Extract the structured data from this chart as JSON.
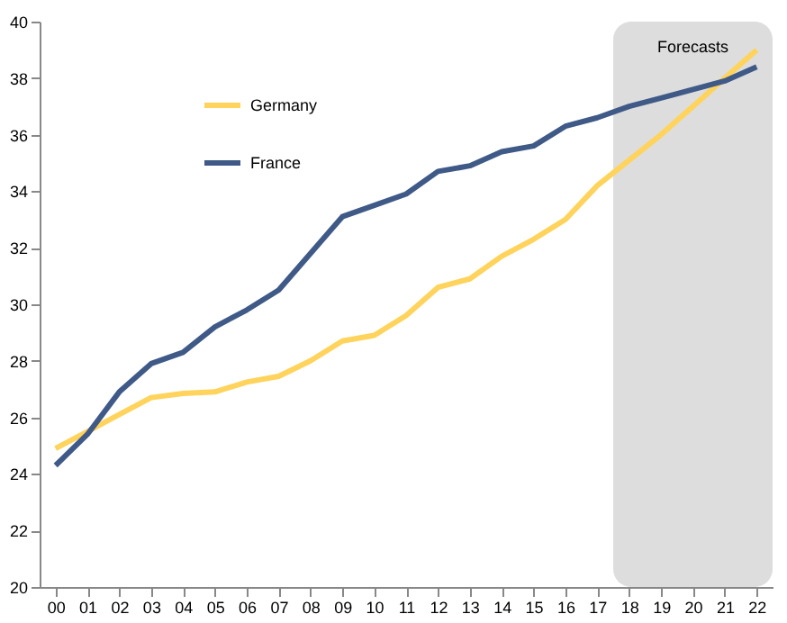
{
  "chart_data": {
    "type": "line",
    "categories": [
      "00",
      "01",
      "02",
      "03",
      "04",
      "05",
      "06",
      "07",
      "08",
      "09",
      "10",
      "11",
      "12",
      "13",
      "14",
      "15",
      "16",
      "17",
      "18",
      "19",
      "20",
      "21",
      "22"
    ],
    "series": [
      {
        "name": "Germany",
        "color": "#ffd35c",
        "values": [
          24.9,
          25.5,
          26.1,
          26.7,
          26.85,
          26.9,
          27.25,
          27.45,
          28.0,
          28.7,
          28.9,
          29.6,
          30.6,
          30.9,
          31.7,
          32.3,
          33.0,
          34.2,
          35.1,
          36.0,
          37.0,
          38.0,
          39.0
        ]
      },
      {
        "name": "France",
        "color": "#3f5a87",
        "values": [
          24.3,
          25.4,
          26.9,
          27.9,
          28.3,
          29.2,
          29.8,
          30.5,
          31.8,
          33.1,
          33.5,
          33.9,
          34.7,
          34.9,
          35.4,
          35.6,
          36.3,
          36.6,
          37.0,
          37.3,
          37.6,
          37.9,
          38.4
        ]
      }
    ],
    "ylim": [
      20,
      40
    ],
    "yticks": [
      20,
      22,
      24,
      26,
      28,
      30,
      32,
      34,
      36,
      38,
      40
    ],
    "bands": [
      {
        "axis": "x",
        "from": "18",
        "to": "22",
        "label": "Forecasts",
        "color": "#dddddd"
      }
    ],
    "grid": false,
    "legend": "top left"
  }
}
